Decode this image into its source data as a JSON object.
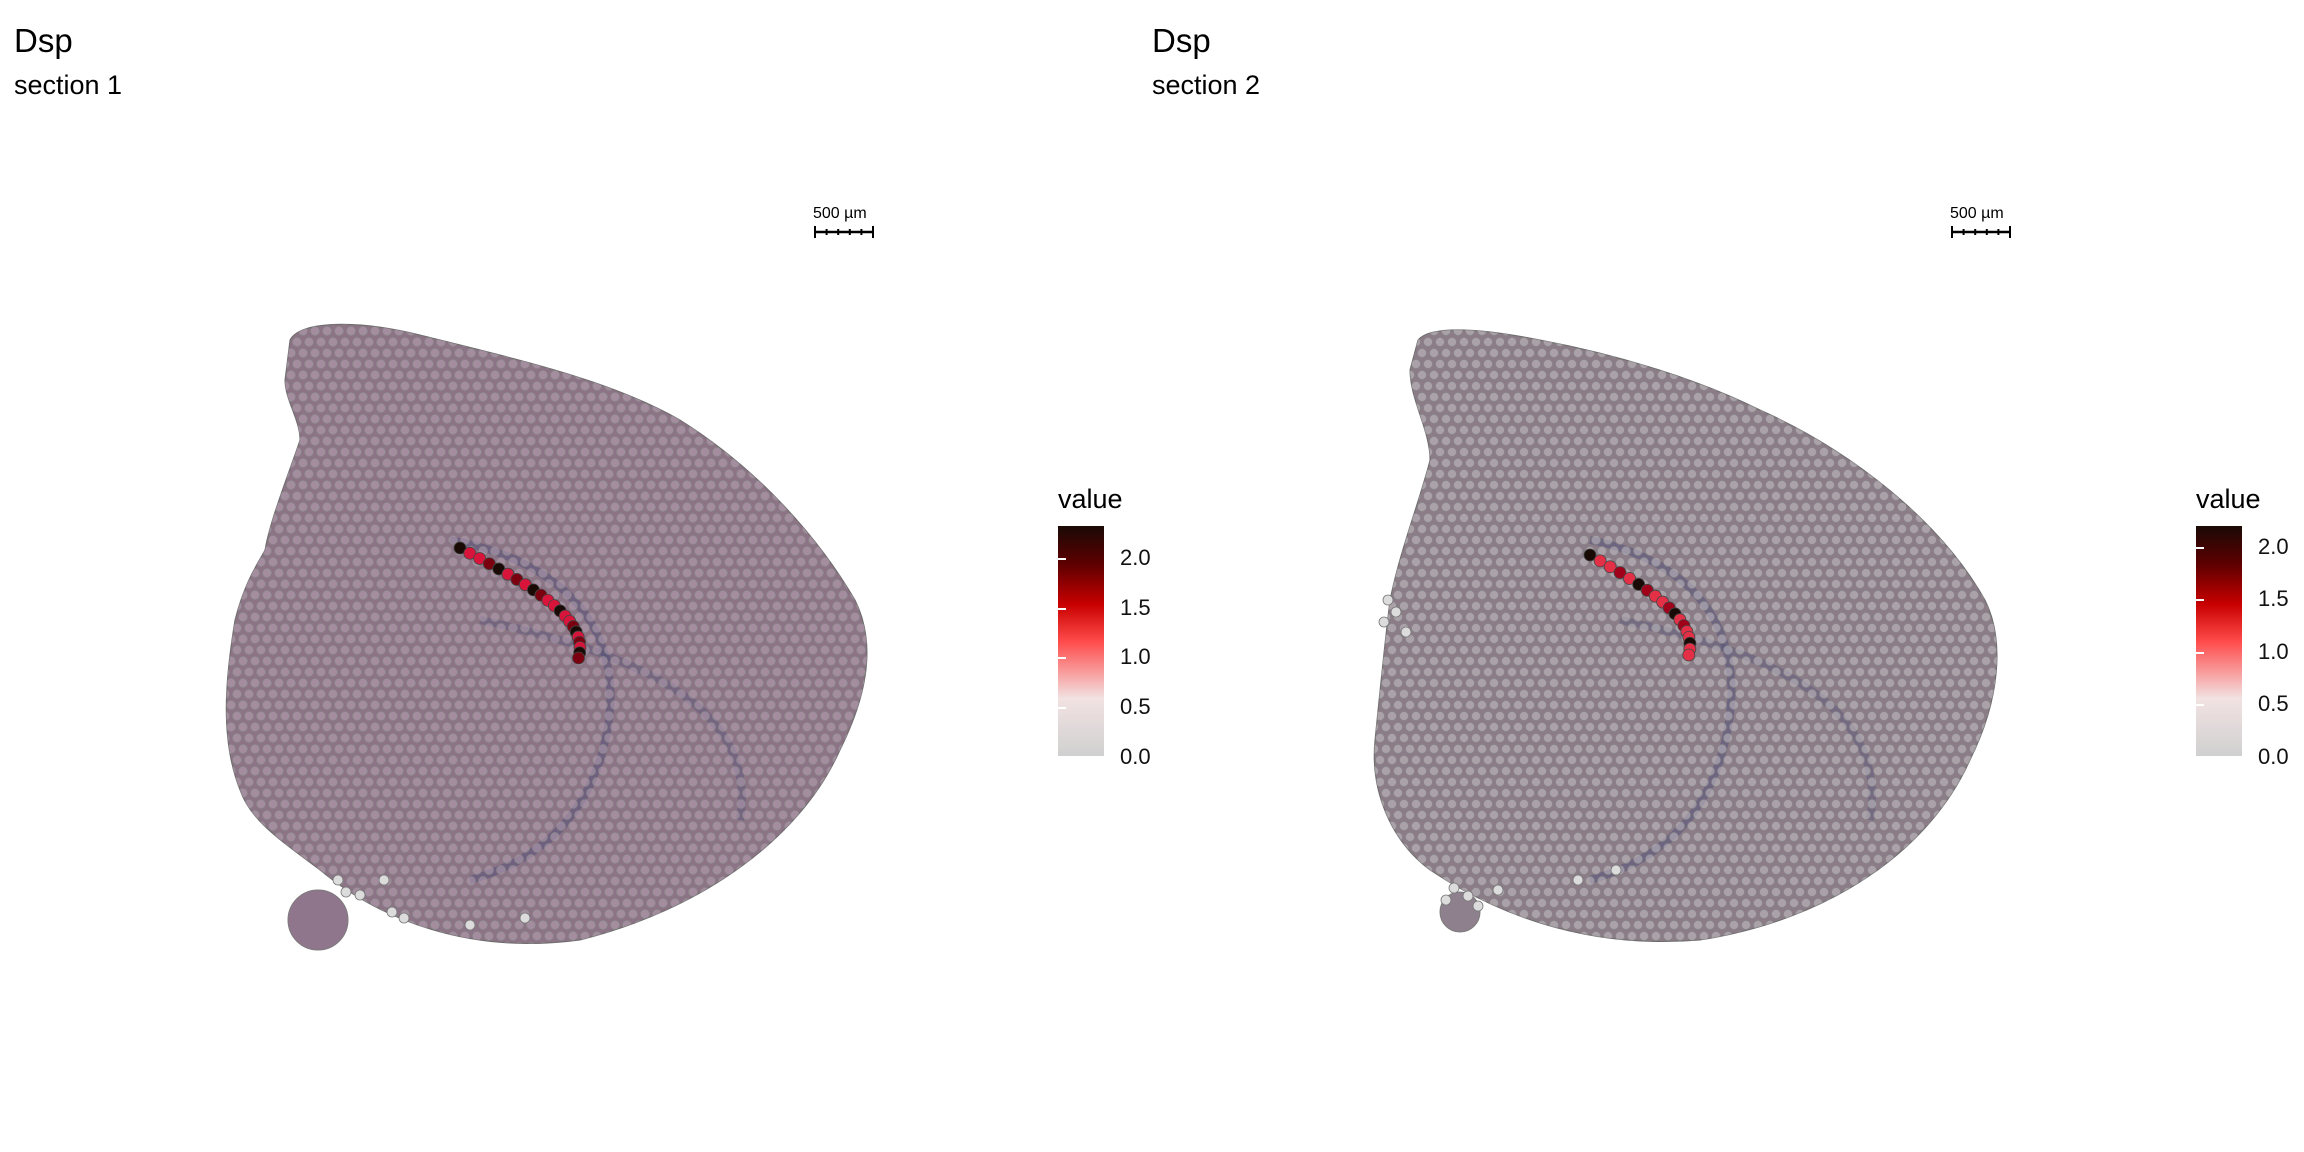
{
  "panels": [
    {
      "title": "Dsp",
      "subtitle": "section 1",
      "scalebar_label": "500 µm",
      "legend": {
        "title": "value",
        "ticks": [
          "2.0",
          "1.5",
          "1.0",
          "0.5",
          "0.0"
        ],
        "max": 2.3
      }
    },
    {
      "title": "Dsp",
      "subtitle": "section 2",
      "scalebar_label": "500 µm",
      "legend": {
        "title": "value",
        "ticks": [
          "2.0",
          "1.5",
          "1.0",
          "0.5",
          "0.0"
        ],
        "max": 2.2
      }
    }
  ],
  "colors": {
    "tissue": "#7d5f78",
    "spot_low": "#d0d0d0",
    "spot_mid": "#ff3030",
    "spot_high": "#1a0a06",
    "background_tissue": "#ece9dc"
  }
}
